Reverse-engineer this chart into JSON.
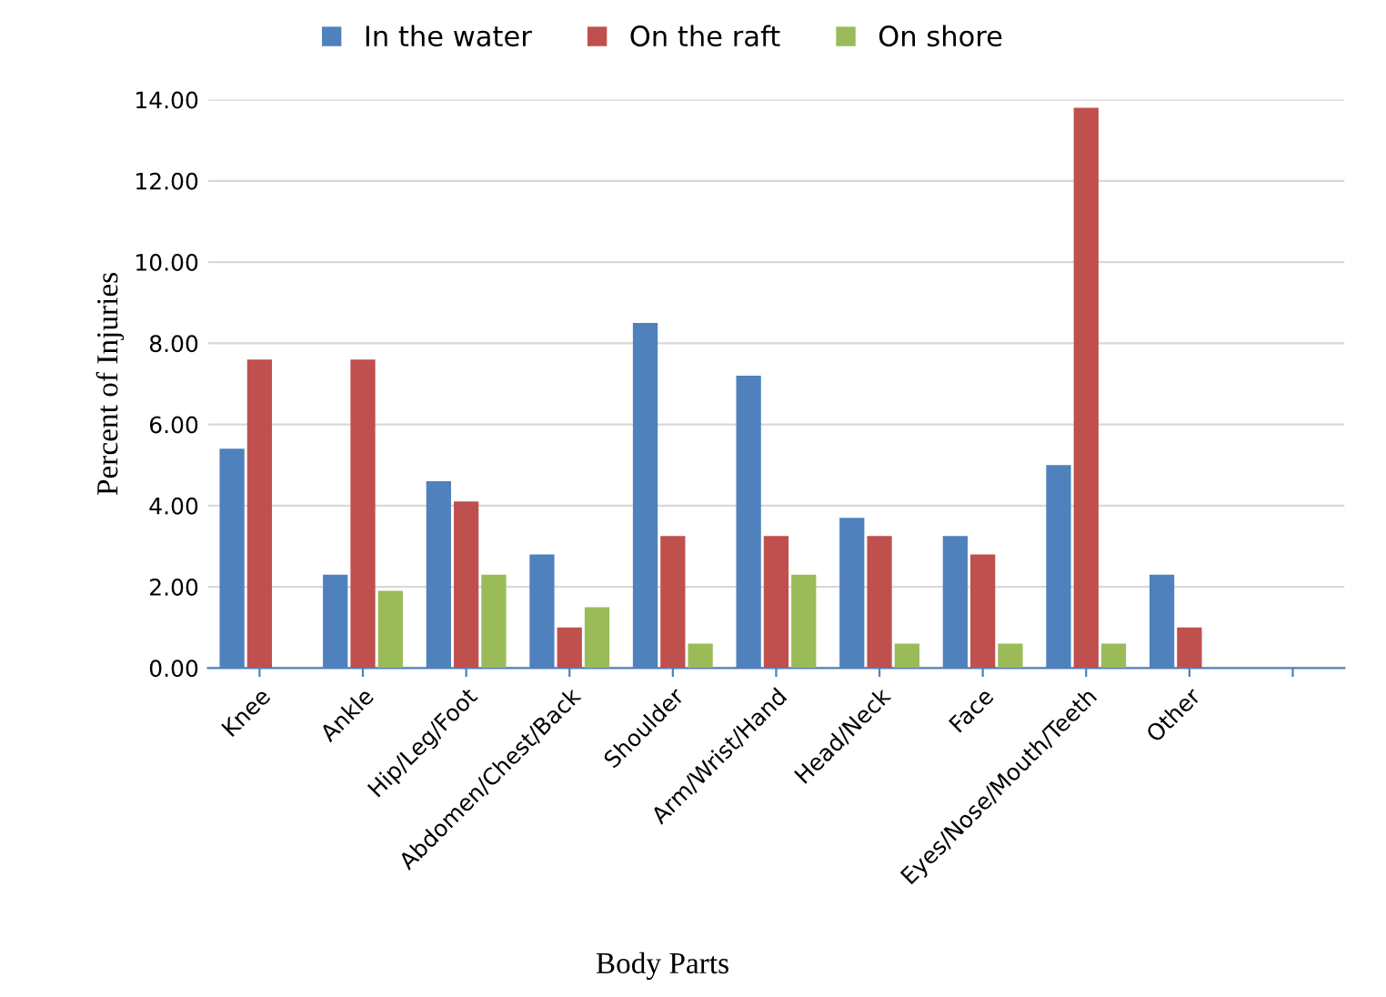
{
  "chart_data": {
    "type": "bar",
    "categories": [
      "Knee",
      "Ankle",
      "Hip/Leg/Foot",
      "Abdomen/Chest/Back",
      "Shoulder",
      "Arm/Wrist/Hand",
      "Head/Neck",
      "Face",
      "Eyes/Nose/Mouth/Teeth",
      "Other",
      null
    ],
    "series": [
      {
        "name": "In the water",
        "color": "#4f81bd",
        "values": [
          5.4,
          2.3,
          4.6,
          2.8,
          8.5,
          7.2,
          3.7,
          3.25,
          5.0,
          2.3,
          null
        ]
      },
      {
        "name": "On the raft",
        "color": "#c0504d",
        "values": [
          7.6,
          7.6,
          4.1,
          1.0,
          3.25,
          3.25,
          3.25,
          2.8,
          13.8,
          1.0,
          null
        ]
      },
      {
        "name": "On shore",
        "color": "#9bbb59",
        "values": [
          0.0,
          1.9,
          2.3,
          1.5,
          0.6,
          2.3,
          0.6,
          0.6,
          0.6,
          0.0,
          null
        ]
      }
    ],
    "xlabel": "Body Parts",
    "ylabel": "Percent of Injuries",
    "ylim": [
      0,
      14
    ],
    "yticks": [
      {
        "value": 0,
        "label": "0.00"
      },
      {
        "value": 2,
        "label": "2.00"
      },
      {
        "value": 4,
        "label": "4.00"
      },
      {
        "value": 6,
        "label": "6.00"
      },
      {
        "value": 8,
        "label": "8.00"
      },
      {
        "value": 10,
        "label": "10.00"
      },
      {
        "value": 12,
        "label": "12.00"
      },
      {
        "value": 14,
        "label": "14.00"
      }
    ],
    "grid": "y",
    "legend": "top"
  }
}
